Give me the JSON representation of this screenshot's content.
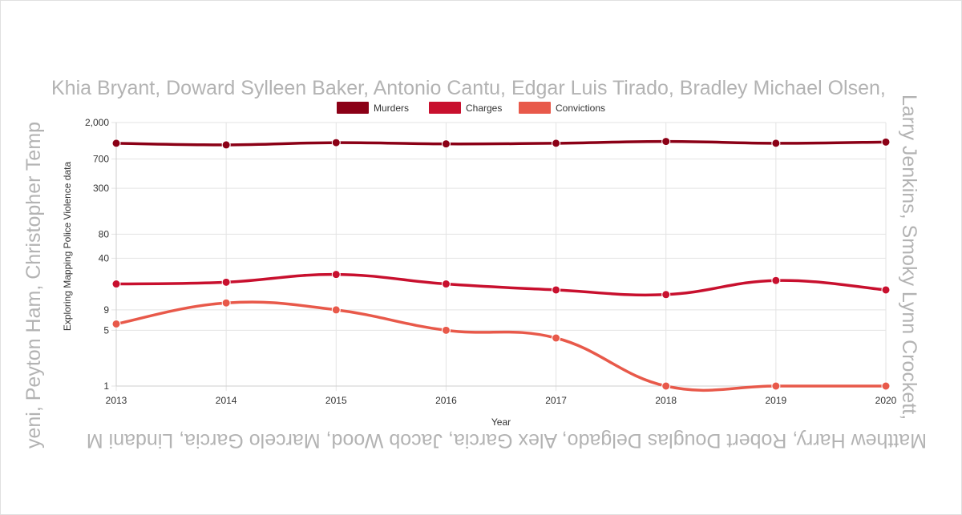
{
  "names": {
    "top": "Khia Bryant, Doward Sylleen Baker, Antonio Cantu, Edgar Luis Tirado, Bradley Michael Olsen,",
    "right": "Larry Jenkins, Smoky Lynn Crockett,",
    "bottom": "Matthew Harry, Robert Douglas Delgado, Alex Garcia, Jacob Wood, Marcelo Garcia, Lindani M",
    "left": "yeni, Peyton Ham, Christopher Temp"
  },
  "colors": {
    "murders": "#8b0016",
    "charges": "#c8102e",
    "convictions": "#e8594a"
  },
  "chart_data": {
    "type": "line",
    "scale": "log",
    "x": [
      "2013",
      "2014",
      "2015",
      "2016",
      "2017",
      "2018",
      "2019",
      "2020"
    ],
    "xlabel": "Year",
    "ylabel": "Exploring Mapping Police Violence data",
    "y_ticks": [
      "1",
      "5",
      "9",
      "40",
      "80",
      "300",
      "700",
      "2,000"
    ],
    "y_tick_values": [
      1,
      5,
      9,
      40,
      80,
      300,
      700,
      2000
    ],
    "ylim": [
      1,
      2000
    ],
    "grid": true,
    "legend_position": "top",
    "series": [
      {
        "name": "Murders",
        "values": [
          1100,
          1050,
          1120,
          1080,
          1100,
          1160,
          1100,
          1140
        ]
      },
      {
        "name": "Charges",
        "values": [
          19,
          20,
          25,
          19,
          16,
          14,
          21,
          16
        ]
      },
      {
        "name": "Convictions",
        "values": [
          6,
          11,
          9,
          5,
          4,
          1,
          1,
          1
        ]
      }
    ]
  }
}
